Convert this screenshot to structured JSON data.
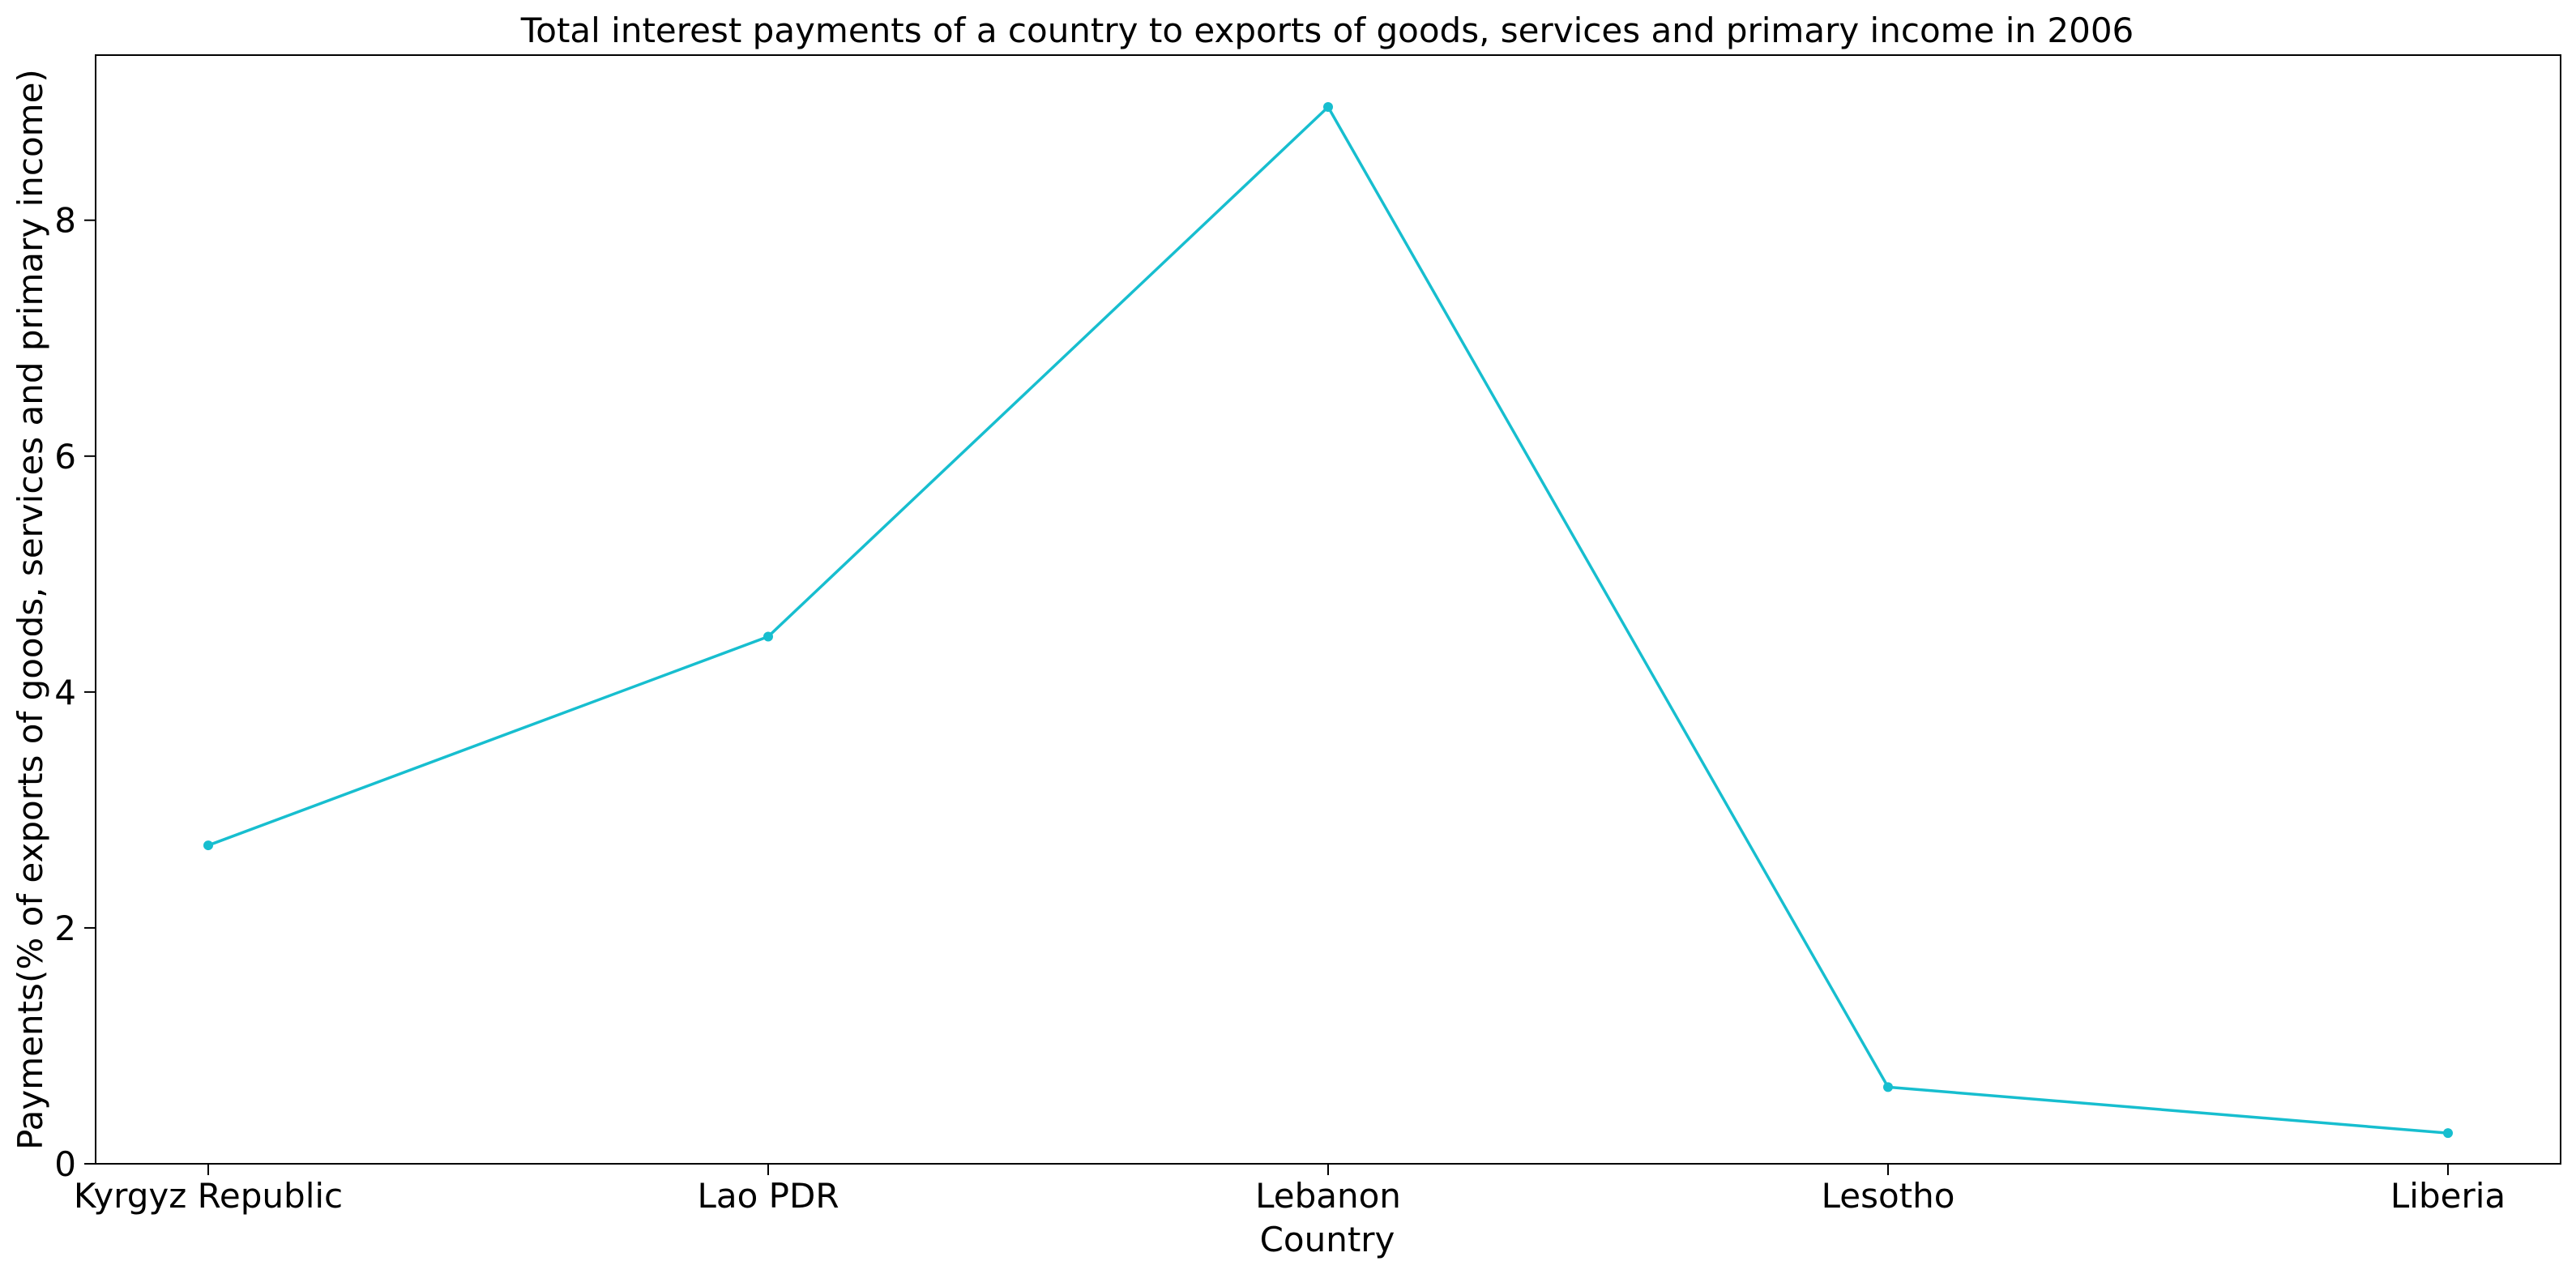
{
  "chart_data": {
    "type": "line",
    "title": "Total interest payments of a country to exports of goods, services and primary income in 2006",
    "xlabel": "Country",
    "ylabel": "Payments(% of exports of goods, services and primary income)",
    "categories": [
      "Kyrgyz Republic",
      "Lao PDR",
      "Lebanon",
      "Lesotho",
      "Liberia"
    ],
    "series": [
      {
        "values": [
          2.7,
          4.47,
          8.96,
          0.65,
          0.26
        ],
        "color": "#17becf"
      }
    ],
    "ylim": [
      0,
      9.4
    ],
    "yticks": [
      0,
      2,
      4,
      6,
      8
    ],
    "grid": false,
    "legend": "none"
  }
}
